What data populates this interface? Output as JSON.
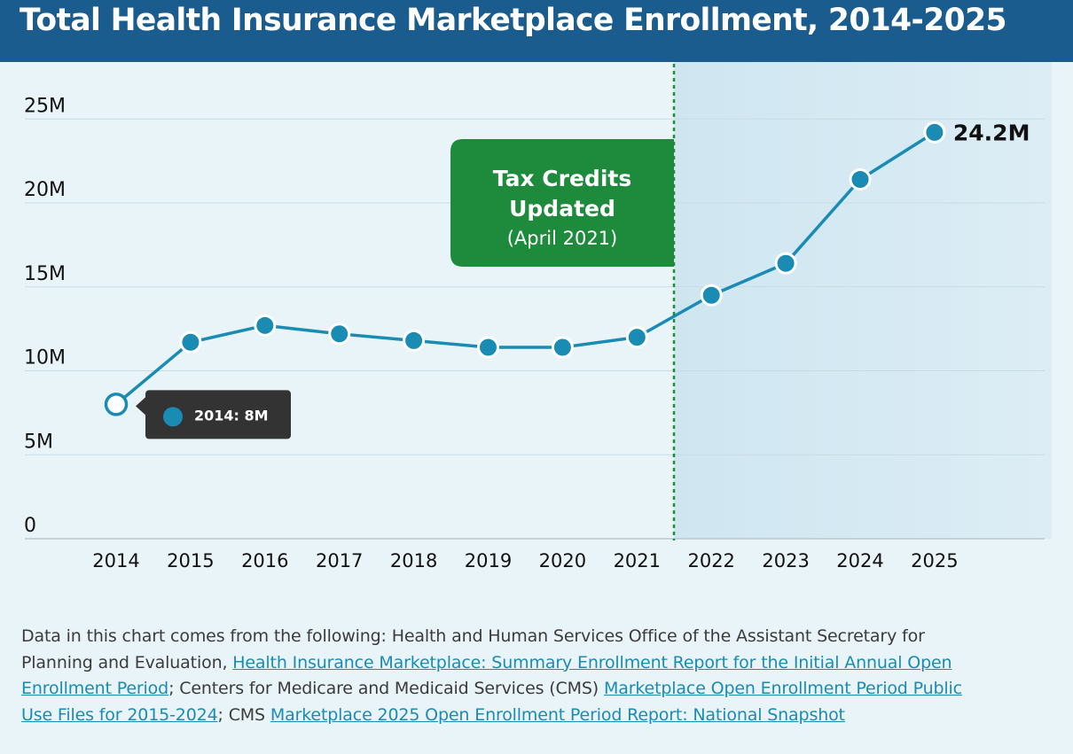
{
  "title": "Total Health Insurance Marketplace Enrollment, 2014-2025",
  "colors": {
    "header": "#1b5c8f",
    "line": "#1a8bb3",
    "annotation_box": "#1d8a3c",
    "tooltip_bg": "#333333",
    "shaded_region": "#cfe7f1"
  },
  "chart_data": {
    "type": "line",
    "categories": [
      "2014",
      "2015",
      "2016",
      "2017",
      "2018",
      "2019",
      "2020",
      "2021",
      "2022",
      "2023",
      "2024",
      "2025"
    ],
    "series": [
      {
        "values": [
          8.0,
          11.7,
          12.7,
          12.2,
          11.8,
          11.4,
          11.4,
          12.0,
          14.5,
          16.4,
          21.4,
          24.2
        ]
      }
    ],
    "y_ticks": [
      "0",
      "5M",
      "10M",
      "15M",
      "20M",
      "25M"
    ],
    "ylim": [
      0,
      28
    ],
    "grid": "horizontal",
    "end_label": "24.2M",
    "tooltip": {
      "text": "2014: 8M",
      "category": "2014"
    },
    "annotation": {
      "line1": "Tax Credits",
      "line2": "Updated",
      "line3": "(April 2021)",
      "after_category": "2021"
    }
  },
  "source_note": {
    "text1": "Data in this chart comes from the following: Health and Human Services Office of the Assistant Secretary for Planning and Evaluation, ",
    "link1": "Health Insurance Marketplace: Summary Enrollment Report for the Initial Annual Open Enrollment Period",
    "text2": "; Centers for Medicare and Medicaid Services (CMS) ",
    "link2": "Marketplace Open Enrollment Period Public Use Files for 2015-2024",
    "text3": "; CMS ",
    "link3": "Marketplace 2025 Open Enrollment Period Report: National Snapshot"
  }
}
